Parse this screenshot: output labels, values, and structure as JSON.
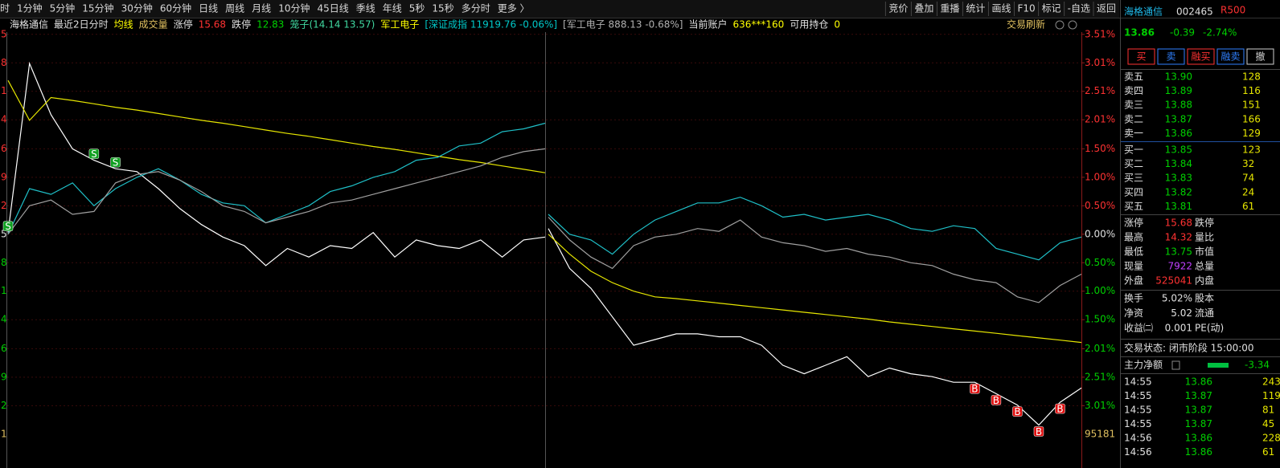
{
  "toolbar": {
    "left": [
      "时",
      "1分钟",
      "5分钟",
      "15分钟",
      "30分钟",
      "60分钟",
      "日线",
      "周线",
      "月线",
      "10分钟",
      "45日线",
      "季线",
      "年线",
      "5秒",
      "15秒",
      "多分时",
      "更多 〉"
    ],
    "right": [
      "竞价",
      "叠加",
      "重播",
      "统计",
      "画线",
      "F10",
      "标记",
      "-自选",
      "返回"
    ]
  },
  "info_bar": {
    "items": [
      {
        "text": "海格通信",
        "color": "#e0e0e0"
      },
      {
        "text": "最近2日分时",
        "color": "#e0e0e0"
      },
      {
        "text": "均线",
        "color": "#ffff00"
      },
      {
        "text": "成交量",
        "color": "#e0c060"
      },
      {
        "text": "涨停",
        "color": "#e0e0e0"
      },
      {
        "text": "15.68",
        "color": "#ff3232"
      },
      {
        "text": "跌停",
        "color": "#e0e0e0"
      },
      {
        "text": "12.83",
        "color": "#00d000"
      },
      {
        "text": "笼子(14.14 13.57)",
        "color": "#40d8a0"
      },
      {
        "text": "军工电子",
        "color": "#ffff00"
      },
      {
        "text": "[深证成指 11919.76 -0.06%]",
        "color": "#00c8c8"
      },
      {
        "text": "[军工电子 888.13 -0.68%]",
        "color": "#b0b0b0"
      },
      {
        "text": "当前账户",
        "color": "#e0e0e0"
      },
      {
        "text": "636***160",
        "color": "#ffff00"
      },
      {
        "text": "可用持仓",
        "color": "#e0e0e0"
      },
      {
        "text": "0",
        "color": "#ffff00"
      }
    ],
    "refresh": "交易刷新"
  },
  "chart_data": {
    "type": "line",
    "ylim": [
      -3.4,
      3.6
    ],
    "yticks": [
      {
        "value": 3.51,
        "label": "3.51%"
      },
      {
        "value": 3.01,
        "label": "3.01%"
      },
      {
        "value": 2.51,
        "label": "2.51%"
      },
      {
        "value": 2.01,
        "label": "2.01%"
      },
      {
        "value": 1.5,
        "label": "1.50%"
      },
      {
        "value": 1.0,
        "label": "1.00%"
      },
      {
        "value": 0.5,
        "label": "0.50%"
      },
      {
        "value": 0,
        "label": "0.00%"
      },
      {
        "value": -0.5,
        "label": "0.50%"
      },
      {
        "value": -1.0,
        "label": "1.00%"
      },
      {
        "value": -1.5,
        "label": "1.50%"
      },
      {
        "value": -2.01,
        "label": "2.01%"
      },
      {
        "value": -2.51,
        "label": "2.51%"
      },
      {
        "value": -3.01,
        "label": "3.01%"
      }
    ],
    "left_labels": [
      5,
      8,
      1,
      4,
      6,
      9,
      2,
      5,
      8,
      1,
      4,
      6,
      9,
      2,
      1
    ],
    "volume_max": 95181,
    "grid": true,
    "series": [
      {
        "color": "#ffffff",
        "values": [
          0.03,
          3.0,
          2.1,
          1.5,
          1.3,
          1.15,
          1.1,
          0.8,
          0.45,
          0.17,
          -0.05,
          -0.2,
          -0.55,
          -0.25,
          -0.4,
          -0.2,
          -0.25,
          0.03,
          -0.4,
          -0.1,
          -0.2,
          -0.25,
          -0.1,
          -0.4,
          -0.1,
          -0.05,
          null,
          0.1,
          -0.6,
          -0.95,
          -1.45,
          -1.95,
          -1.85,
          -1.75,
          -1.75,
          -1.8,
          -1.8,
          -1.95,
          -2.3,
          -2.45,
          -2.3,
          -2.15,
          -2.5,
          -2.35,
          -2.45,
          -2.5,
          -2.6,
          -2.6,
          -2.8,
          -3.0,
          -3.35,
          -2.95,
          -2.7
        ]
      },
      {
        "color": "#e6e600",
        "values": [
          2.7,
          2.0,
          2.4,
          2.35,
          2.29,
          2.23,
          2.18,
          2.12,
          2.06,
          2.0,
          1.95,
          1.89,
          1.83,
          1.77,
          1.72,
          1.66,
          1.6,
          1.54,
          1.49,
          1.43,
          1.37,
          1.31,
          1.26,
          1.2,
          1.14,
          1.08,
          null,
          0.0,
          -0.35,
          -0.65,
          -0.85,
          -1.0,
          -1.1,
          -1.13,
          -1.17,
          -1.21,
          -1.25,
          -1.29,
          -1.33,
          -1.37,
          -1.41,
          -1.45,
          -1.49,
          -1.54,
          -1.58,
          -1.62,
          -1.66,
          -1.7,
          -1.74,
          -1.78,
          -1.82,
          -1.86,
          -1.9
        ]
      },
      {
        "color": "#1fc0c8",
        "values": [
          0.0,
          0.8,
          0.7,
          0.9,
          0.5,
          0.8,
          1.0,
          1.15,
          0.95,
          0.7,
          0.55,
          0.5,
          0.2,
          0.35,
          0.5,
          0.75,
          0.85,
          1.0,
          1.1,
          1.3,
          1.35,
          1.55,
          1.6,
          1.8,
          1.85,
          1.95,
          null,
          0.35,
          0.0,
          -0.1,
          -0.35,
          0.0,
          0.25,
          0.4,
          0.55,
          0.55,
          0.65,
          0.5,
          0.3,
          0.35,
          0.25,
          0.3,
          0.35,
          0.25,
          0.1,
          0.05,
          0.15,
          0.1,
          -0.25,
          -0.35,
          -0.45,
          -0.15,
          -0.05
        ]
      },
      {
        "color": "#a0a0a0",
        "values": [
          0.0,
          0.5,
          0.6,
          0.35,
          0.4,
          0.9,
          1.05,
          1.1,
          0.95,
          0.75,
          0.5,
          0.4,
          0.2,
          0.3,
          0.4,
          0.55,
          0.6,
          0.7,
          0.8,
          0.9,
          1.0,
          1.1,
          1.2,
          1.35,
          1.45,
          1.5,
          null,
          0.3,
          -0.1,
          -0.4,
          -0.6,
          -0.2,
          -0.05,
          0.0,
          0.1,
          0.05,
          0.25,
          -0.05,
          -0.15,
          -0.2,
          -0.3,
          -0.25,
          -0.35,
          -0.4,
          -0.5,
          -0.55,
          -0.7,
          -0.8,
          -0.85,
          -1.1,
          -1.2,
          -0.9,
          -0.7
        ]
      }
    ],
    "markers": [
      {
        "label": "S",
        "index": 0
      },
      {
        "label": "S",
        "index": 4
      },
      {
        "label": "S",
        "index": 5
      },
      {
        "label": "B",
        "index": 47
      },
      {
        "label": "B",
        "index": 48
      },
      {
        "label": "B",
        "index": 49
      },
      {
        "label": "B",
        "index": 50
      },
      {
        "label": "B",
        "index": 51
      }
    ]
  },
  "side_panel": {
    "name": "海格通信",
    "code": "002465",
    "tag": "R500",
    "price": "13.86",
    "change": "-0.39",
    "pct": "-2.74%",
    "buttons": [
      "买",
      "卖",
      "融买",
      "融卖",
      "撤"
    ],
    "asks": [
      [
        "卖五",
        "13.90",
        "128"
      ],
      [
        "卖四",
        "13.89",
        "116"
      ],
      [
        "卖三",
        "13.88",
        "151"
      ],
      [
        "卖二",
        "13.87",
        "166"
      ],
      [
        "卖一",
        "13.86",
        "129"
      ]
    ],
    "bids": [
      [
        "买一",
        "13.85",
        "123"
      ],
      [
        "买二",
        "13.84",
        "32"
      ],
      [
        "买三",
        "13.83",
        "74"
      ],
      [
        "买四",
        "13.82",
        "24"
      ],
      [
        "买五",
        "13.81",
        "61"
      ]
    ],
    "stats": [
      [
        "涨停",
        "15.68",
        "跌停"
      ],
      [
        "最高",
        "14.32",
        "量比"
      ],
      [
        "最低",
        "13.75",
        "市值"
      ],
      [
        "现量",
        "7922",
        "总量"
      ],
      [
        "外盘",
        "525041",
        "内盘"
      ],
      [
        "换手",
        "5.02%",
        "股本"
      ],
      [
        "净资",
        "5.02",
        "流通"
      ],
      [
        "收益㈡",
        "0.001",
        "PE(动)"
      ]
    ],
    "status": "交易状态: 闭市阶段 15:00:00",
    "flow_label": "主力净额",
    "flow_value": "-3.34",
    "trades": [
      [
        "14:55",
        "13.86",
        "243"
      ],
      [
        "14:55",
        "13.87",
        "119"
      ],
      [
        "14:55",
        "13.87",
        "81"
      ],
      [
        "14:55",
        "13.87",
        "45"
      ],
      [
        "14:56",
        "13.86",
        "228"
      ],
      [
        "14:56",
        "13.86",
        "61"
      ]
    ]
  }
}
